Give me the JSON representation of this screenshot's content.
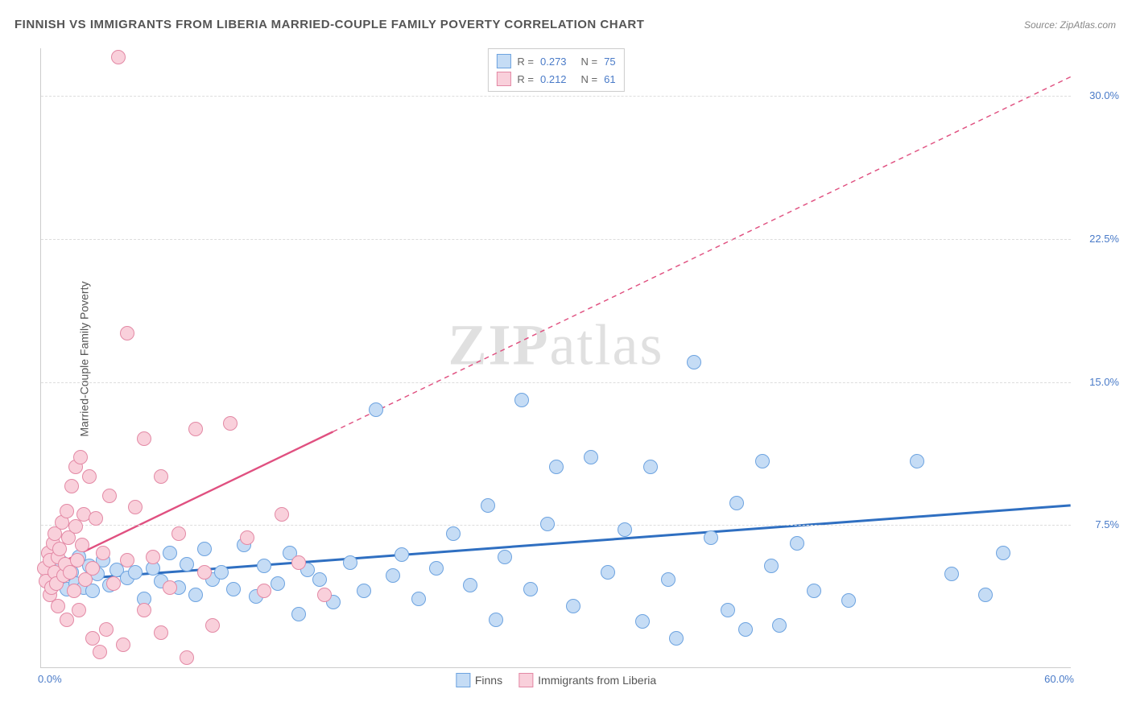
{
  "title": "FINNISH VS IMMIGRANTS FROM LIBERIA MARRIED-COUPLE FAMILY POVERTY CORRELATION CHART",
  "source": "Source: ZipAtlas.com",
  "ylabel": "Married-Couple Family Poverty",
  "watermark_left": "ZIP",
  "watermark_right": "atlas",
  "chart": {
    "type": "scatter",
    "xlim": [
      0,
      60
    ],
    "ylim": [
      0,
      32.5
    ],
    "yticks": [
      7.5,
      15.0,
      22.5,
      30.0
    ],
    "ytick_labels": [
      "7.5%",
      "15.0%",
      "22.5%",
      "30.0%"
    ],
    "x_start_label": "0.0%",
    "x_end_label": "60.0%",
    "background_color": "#ffffff",
    "grid_color": "#dddddd",
    "marker_radius": 9,
    "marker_stroke_width": 1.2,
    "series": [
      {
        "name": "Finns",
        "fill": "#c5dcf5",
        "stroke": "#6da3e0",
        "line_color": "#2f6fc1",
        "line_width": 3,
        "trend": {
          "x1": 0,
          "y1": 4.5,
          "x2": 60,
          "y2": 8.5,
          "dashed_from_x": null
        },
        "R": 0.273,
        "N": 75,
        "points": [
          [
            0.5,
            5.2
          ],
          [
            1.0,
            4.6
          ],
          [
            1.2,
            5.5
          ],
          [
            1.5,
            4.1
          ],
          [
            1.8,
            5.0
          ],
          [
            2.0,
            4.4
          ],
          [
            2.2,
            5.8
          ],
          [
            2.5,
            4.2
          ],
          [
            2.8,
            5.3
          ],
          [
            3.0,
            4.0
          ],
          [
            3.3,
            4.9
          ],
          [
            3.6,
            5.6
          ],
          [
            4.0,
            4.3
          ],
          [
            4.4,
            5.1
          ],
          [
            5.0,
            4.7
          ],
          [
            5.5,
            5.0
          ],
          [
            6.0,
            3.6
          ],
          [
            6.5,
            5.2
          ],
          [
            7.0,
            4.5
          ],
          [
            7.5,
            6.0
          ],
          [
            8.0,
            4.2
          ],
          [
            8.5,
            5.4
          ],
          [
            9.0,
            3.8
          ],
          [
            9.5,
            6.2
          ],
          [
            10.0,
            4.6
          ],
          [
            10.5,
            5.0
          ],
          [
            11.2,
            4.1
          ],
          [
            11.8,
            6.4
          ],
          [
            12.5,
            3.7
          ],
          [
            13.0,
            5.3
          ],
          [
            13.8,
            4.4
          ],
          [
            14.5,
            6.0
          ],
          [
            15.0,
            2.8
          ],
          [
            15.5,
            5.1
          ],
          [
            16.2,
            4.6
          ],
          [
            17.0,
            3.4
          ],
          [
            18.0,
            5.5
          ],
          [
            18.8,
            4.0
          ],
          [
            19.5,
            13.5
          ],
          [
            20.5,
            4.8
          ],
          [
            21.0,
            5.9
          ],
          [
            22.0,
            3.6
          ],
          [
            23.0,
            5.2
          ],
          [
            24.0,
            7.0
          ],
          [
            25.0,
            4.3
          ],
          [
            26.0,
            8.5
          ],
          [
            26.5,
            2.5
          ],
          [
            27.0,
            5.8
          ],
          [
            28.0,
            14.0
          ],
          [
            28.5,
            4.1
          ],
          [
            29.5,
            7.5
          ],
          [
            30.0,
            10.5
          ],
          [
            31.0,
            3.2
          ],
          [
            32.0,
            11.0
          ],
          [
            33.0,
            5.0
          ],
          [
            34.0,
            7.2
          ],
          [
            35.0,
            2.4
          ],
          [
            35.5,
            10.5
          ],
          [
            36.5,
            4.6
          ],
          [
            37.0,
            1.5
          ],
          [
            38.0,
            16.0
          ],
          [
            39.0,
            6.8
          ],
          [
            40.0,
            3.0
          ],
          [
            40.5,
            8.6
          ],
          [
            41.0,
            2.0
          ],
          [
            42.0,
            10.8
          ],
          [
            42.5,
            5.3
          ],
          [
            43.0,
            2.2
          ],
          [
            44.0,
            6.5
          ],
          [
            45.0,
            4.0
          ],
          [
            47.0,
            3.5
          ],
          [
            51.0,
            10.8
          ],
          [
            53.0,
            4.9
          ],
          [
            55.0,
            3.8
          ],
          [
            56.0,
            6.0
          ]
        ]
      },
      {
        "name": "Immigrants from Liberia",
        "fill": "#f9d0db",
        "stroke": "#e389a5",
        "line_color": "#e05080",
        "line_width": 2.4,
        "trend": {
          "x1": 0,
          "y1": 5.0,
          "x2": 60,
          "y2": 31.0,
          "dashed_from_x": 17
        },
        "R": 0.212,
        "N": 61,
        "points": [
          [
            0.2,
            5.2
          ],
          [
            0.3,
            4.5
          ],
          [
            0.4,
            6.0
          ],
          [
            0.5,
            3.8
          ],
          [
            0.5,
            5.6
          ],
          [
            0.6,
            4.2
          ],
          [
            0.7,
            6.5
          ],
          [
            0.8,
            5.0
          ],
          [
            0.8,
            7.0
          ],
          [
            0.9,
            4.4
          ],
          [
            1.0,
            5.8
          ],
          [
            1.0,
            3.2
          ],
          [
            1.1,
            6.2
          ],
          [
            1.2,
            7.6
          ],
          [
            1.3,
            4.8
          ],
          [
            1.4,
            5.4
          ],
          [
            1.5,
            2.5
          ],
          [
            1.5,
            8.2
          ],
          [
            1.6,
            6.8
          ],
          [
            1.7,
            5.0
          ],
          [
            1.8,
            9.5
          ],
          [
            1.9,
            4.0
          ],
          [
            2.0,
            7.4
          ],
          [
            2.0,
            10.5
          ],
          [
            2.1,
            5.6
          ],
          [
            2.2,
            3.0
          ],
          [
            2.3,
            11.0
          ],
          [
            2.4,
            6.4
          ],
          [
            2.5,
            8.0
          ],
          [
            2.6,
            4.6
          ],
          [
            2.8,
            10.0
          ],
          [
            3.0,
            5.2
          ],
          [
            3.0,
            1.5
          ],
          [
            3.2,
            7.8
          ],
          [
            3.4,
            0.8
          ],
          [
            3.6,
            6.0
          ],
          [
            3.8,
            2.0
          ],
          [
            4.0,
            9.0
          ],
          [
            4.2,
            4.4
          ],
          [
            4.5,
            32.0
          ],
          [
            4.8,
            1.2
          ],
          [
            5.0,
            5.6
          ],
          [
            5.0,
            17.5
          ],
          [
            5.5,
            8.4
          ],
          [
            6.0,
            3.0
          ],
          [
            6.0,
            12.0
          ],
          [
            6.5,
            5.8
          ],
          [
            7.0,
            10.0
          ],
          [
            7.0,
            1.8
          ],
          [
            7.5,
            4.2
          ],
          [
            8.0,
            7.0
          ],
          [
            8.5,
            0.5
          ],
          [
            9.0,
            12.5
          ],
          [
            9.5,
            5.0
          ],
          [
            10.0,
            2.2
          ],
          [
            11.0,
            12.8
          ],
          [
            12.0,
            6.8
          ],
          [
            13.0,
            4.0
          ],
          [
            14.0,
            8.0
          ],
          [
            15.0,
            5.5
          ],
          [
            16.5,
            3.8
          ]
        ]
      }
    ]
  },
  "legend_top": {
    "r_label": "R =",
    "n_label": "N ="
  },
  "legend_bottom": {
    "items": [
      "Finns",
      "Immigrants from Liberia"
    ]
  }
}
